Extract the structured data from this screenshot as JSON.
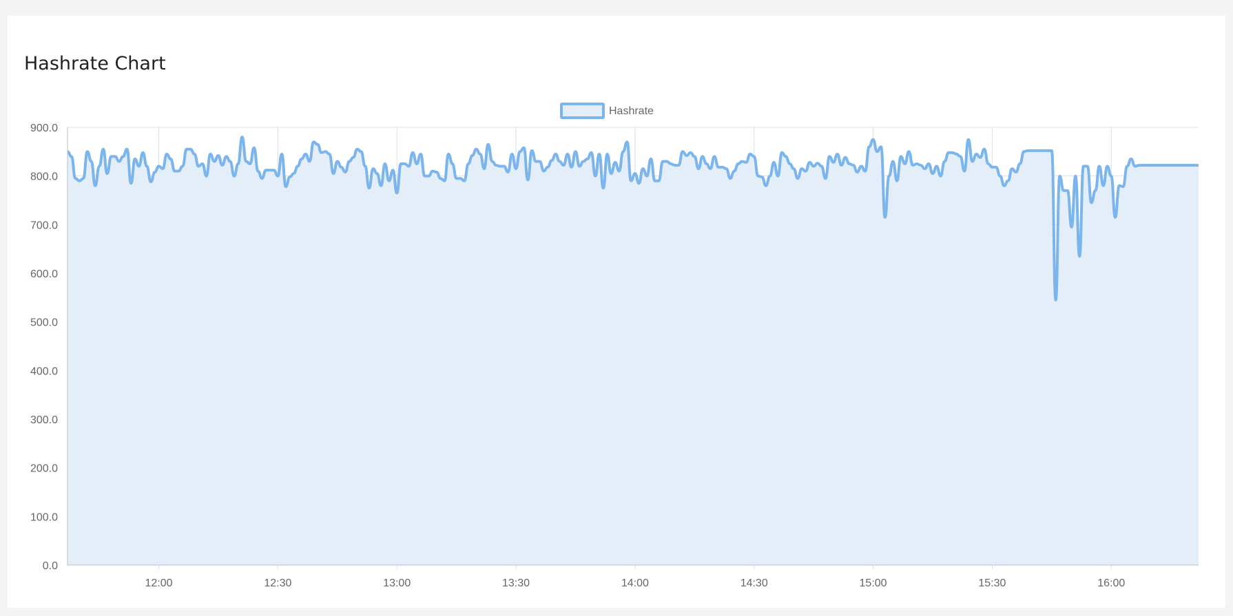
{
  "card": {
    "title": "Hashrate Chart"
  },
  "colors": {
    "line": "#7cb5ec",
    "fill": "#e4eef9",
    "grid": "#d9dfe7",
    "axis": "#b8c2cc",
    "background": "#ffffff",
    "page": "#f4f4f4"
  },
  "chart_data": {
    "type": "area",
    "title": "",
    "xlabel": "",
    "ylabel": "",
    "ylim": [
      0,
      900
    ],
    "xlim": [
      "11:37",
      "16:22"
    ],
    "y_ticks": [
      "0.0",
      "100.0",
      "200.0",
      "300.0",
      "400.0",
      "500.0",
      "600.0",
      "700.0",
      "800.0",
      "900.0"
    ],
    "x_ticks": [
      "12:00",
      "12:30",
      "13:00",
      "13:30",
      "14:00",
      "14:30",
      "15:00",
      "15:30",
      "16:00"
    ],
    "grid": true,
    "legend_position": "top-center",
    "series": [
      {
        "name": "Hashrate",
        "points": [
          [
            "11:37",
            850
          ],
          [
            "11:38",
            840
          ],
          [
            "11:39",
            795
          ],
          [
            "11:40",
            790
          ],
          [
            "11:41",
            795
          ],
          [
            "11:42",
            850
          ],
          [
            "11:43",
            830
          ],
          [
            "11:44",
            780
          ],
          [
            "11:45",
            820
          ],
          [
            "11:46",
            855
          ],
          [
            "11:47",
            805
          ],
          [
            "11:48",
            840
          ],
          [
            "11:49",
            840
          ],
          [
            "11:50",
            830
          ],
          [
            "11:51",
            840
          ],
          [
            "11:52",
            855
          ],
          [
            "11:53",
            785
          ],
          [
            "11:54",
            835
          ],
          [
            "11:55",
            820
          ],
          [
            "11:56",
            848
          ],
          [
            "11:57",
            820
          ],
          [
            "11:58",
            788
          ],
          [
            "11:59",
            808
          ],
          [
            "12:00",
            820
          ],
          [
            "12:01",
            815
          ],
          [
            "12:02",
            845
          ],
          [
            "12:03",
            835
          ],
          [
            "12:04",
            810
          ],
          [
            "12:05",
            810
          ],
          [
            "12:06",
            820
          ],
          [
            "12:07",
            855
          ],
          [
            "12:08",
            855
          ],
          [
            "12:09",
            845
          ],
          [
            "12:10",
            820
          ],
          [
            "12:11",
            825
          ],
          [
            "12:12",
            800
          ],
          [
            "12:13",
            845
          ],
          [
            "12:14",
            830
          ],
          [
            "12:15",
            842
          ],
          [
            "12:16",
            822
          ],
          [
            "12:17",
            840
          ],
          [
            "12:18",
            830
          ],
          [
            "12:19",
            800
          ],
          [
            "12:20",
            825
          ],
          [
            "12:21",
            880
          ],
          [
            "12:22",
            830
          ],
          [
            "12:23",
            825
          ],
          [
            "12:24",
            858
          ],
          [
            "12:25",
            810
          ],
          [
            "12:26",
            795
          ],
          [
            "12:27",
            812
          ],
          [
            "12:28",
            812
          ],
          [
            "12:29",
            812
          ],
          [
            "12:30",
            800
          ],
          [
            "12:31",
            845
          ],
          [
            "12:32",
            778
          ],
          [
            "12:33",
            798
          ],
          [
            "12:34",
            805
          ],
          [
            "12:35",
            820
          ],
          [
            "12:36",
            835
          ],
          [
            "12:37",
            845
          ],
          [
            "12:38",
            830
          ],
          [
            "12:39",
            870
          ],
          [
            "12:40",
            865
          ],
          [
            "12:41",
            848
          ],
          [
            "12:42",
            850
          ],
          [
            "12:43",
            845
          ],
          [
            "12:44",
            805
          ],
          [
            "12:45",
            830
          ],
          [
            "12:46",
            818
          ],
          [
            "12:47",
            808
          ],
          [
            "12:48",
            830
          ],
          [
            "12:49",
            838
          ],
          [
            "12:50",
            855
          ],
          [
            "12:51",
            850
          ],
          [
            "12:52",
            820
          ],
          [
            "12:53",
            775
          ],
          [
            "12:54",
            815
          ],
          [
            "12:55",
            805
          ],
          [
            "12:56",
            780
          ],
          [
            "12:57",
            825
          ],
          [
            "12:58",
            790
          ],
          [
            "12:59",
            812
          ],
          [
            "13:00",
            765
          ],
          [
            "13:01",
            825
          ],
          [
            "13:02",
            825
          ],
          [
            "13:03",
            820
          ],
          [
            "13:04",
            848
          ],
          [
            "13:05",
            825
          ],
          [
            "13:06",
            845
          ],
          [
            "13:07",
            800
          ],
          [
            "13:08",
            800
          ],
          [
            "13:09",
            810
          ],
          [
            "13:10",
            808
          ],
          [
            "13:11",
            795
          ],
          [
            "13:12",
            790
          ],
          [
            "13:13",
            845
          ],
          [
            "13:14",
            825
          ],
          [
            "13:15",
            795
          ],
          [
            "13:16",
            795
          ],
          [
            "13:17",
            790
          ],
          [
            "13:18",
            825
          ],
          [
            "13:19",
            842
          ],
          [
            "13:20",
            855
          ],
          [
            "13:21",
            845
          ],
          [
            "13:22",
            815
          ],
          [
            "13:23",
            865
          ],
          [
            "13:24",
            830
          ],
          [
            "13:25",
            822
          ],
          [
            "13:26",
            820
          ],
          [
            "13:27",
            820
          ],
          [
            "13:28",
            808
          ],
          [
            "13:29",
            845
          ],
          [
            "13:30",
            815
          ],
          [
            "13:31",
            850
          ],
          [
            "13:32",
            858
          ],
          [
            "13:33",
            792
          ],
          [
            "13:34",
            852
          ],
          [
            "13:35",
            830
          ],
          [
            "13:36",
            830
          ],
          [
            "13:37",
            810
          ],
          [
            "13:38",
            818
          ],
          [
            "13:39",
            832
          ],
          [
            "13:40",
            845
          ],
          [
            "13:41",
            830
          ],
          [
            "13:42",
            822
          ],
          [
            "13:43",
            845
          ],
          [
            "13:44",
            818
          ],
          [
            "13:45",
            850
          ],
          [
            "13:46",
            820
          ],
          [
            "13:47",
            830
          ],
          [
            "13:48",
            835
          ],
          [
            "13:49",
            848
          ],
          [
            "13:50",
            800
          ],
          [
            "13:51",
            845
          ],
          [
            "13:52",
            775
          ],
          [
            "13:53",
            845
          ],
          [
            "13:54",
            805
          ],
          [
            "13:55",
            828
          ],
          [
            "13:56",
            810
          ],
          [
            "13:57",
            850
          ],
          [
            "13:58",
            870
          ],
          [
            "13:59",
            790
          ],
          [
            "14:00",
            805
          ],
          [
            "14:01",
            785
          ],
          [
            "14:02",
            815
          ],
          [
            "14:03",
            800
          ],
          [
            "14:04",
            835
          ],
          [
            "14:05",
            790
          ],
          [
            "14:06",
            790
          ],
          [
            "14:07",
            830
          ],
          [
            "14:08",
            830
          ],
          [
            "14:09",
            825
          ],
          [
            "14:10",
            822
          ],
          [
            "14:11",
            822
          ],
          [
            "14:12",
            850
          ],
          [
            "14:13",
            842
          ],
          [
            "14:14",
            848
          ],
          [
            "14:15",
            840
          ],
          [
            "14:16",
            815
          ],
          [
            "14:17",
            840
          ],
          [
            "14:18",
            825
          ],
          [
            "14:19",
            815
          ],
          [
            "14:20",
            840
          ],
          [
            "14:21",
            818
          ],
          [
            "14:22",
            818
          ],
          [
            "14:23",
            815
          ],
          [
            "14:24",
            795
          ],
          [
            "14:25",
            810
          ],
          [
            "14:26",
            825
          ],
          [
            "14:27",
            830
          ],
          [
            "14:28",
            828
          ],
          [
            "14:29",
            845
          ],
          [
            "14:30",
            840
          ],
          [
            "14:31",
            800
          ],
          [
            "14:32",
            798
          ],
          [
            "14:33",
            780
          ],
          [
            "14:34",
            800
          ],
          [
            "14:35",
            828
          ],
          [
            "14:36",
            800
          ],
          [
            "14:37",
            848
          ],
          [
            "14:38",
            840
          ],
          [
            "14:39",
            825
          ],
          [
            "14:40",
            815
          ],
          [
            "14:41",
            795
          ],
          [
            "14:42",
            815
          ],
          [
            "14:43",
            810
          ],
          [
            "14:44",
            828
          ],
          [
            "14:45",
            820
          ],
          [
            "14:46",
            826
          ],
          [
            "14:47",
            820
          ],
          [
            "14:48",
            795
          ],
          [
            "14:49",
            840
          ],
          [
            "14:50",
            828
          ],
          [
            "14:51",
            845
          ],
          [
            "14:52",
            822
          ],
          [
            "14:53",
            838
          ],
          [
            "14:54",
            825
          ],
          [
            "14:55",
            822
          ],
          [
            "14:56",
            808
          ],
          [
            "14:57",
            820
          ],
          [
            "14:58",
            810
          ],
          [
            "14:59",
            860
          ],
          [
            "15:00",
            875
          ],
          [
            "15:01",
            850
          ],
          [
            "15:02",
            860
          ],
          [
            "15:03",
            715
          ],
          [
            "15:04",
            800
          ],
          [
            "15:05",
            830
          ],
          [
            "15:06",
            790
          ],
          [
            "15:07",
            840
          ],
          [
            "15:08",
            825
          ],
          [
            "15:09",
            850
          ],
          [
            "15:10",
            822
          ],
          [
            "15:11",
            825
          ],
          [
            "15:12",
            822
          ],
          [
            "15:13",
            815
          ],
          [
            "15:14",
            825
          ],
          [
            "15:15",
            805
          ],
          [
            "15:16",
            820
          ],
          [
            "15:17",
            800
          ],
          [
            "15:18",
            830
          ],
          [
            "15:19",
            848
          ],
          [
            "15:20",
            848
          ],
          [
            "15:21",
            845
          ],
          [
            "15:22",
            840
          ],
          [
            "15:23",
            810
          ],
          [
            "15:24",
            875
          ],
          [
            "15:25",
            830
          ],
          [
            "15:26",
            845
          ],
          [
            "15:27",
            838
          ],
          [
            "15:28",
            855
          ],
          [
            "15:29",
            825
          ],
          [
            "15:30",
            818
          ],
          [
            "15:31",
            818
          ],
          [
            "15:32",
            800
          ],
          [
            "15:33",
            780
          ],
          [
            "15:34",
            790
          ],
          [
            "15:35",
            815
          ],
          [
            "15:36",
            808
          ],
          [
            "15:37",
            825
          ],
          [
            "15:38",
            850
          ],
          [
            "15:39",
            852
          ],
          [
            "15:40",
            852
          ],
          [
            "15:41",
            852
          ],
          [
            "15:42",
            852
          ],
          [
            "15:43",
            852
          ],
          [
            "15:44",
            852
          ],
          [
            "15:45",
            852
          ],
          [
            "15:46",
            545
          ],
          [
            "15:47",
            800
          ],
          [
            "15:48",
            770
          ],
          [
            "15:49",
            770
          ],
          [
            "15:50",
            695
          ],
          [
            "15:51",
            800
          ],
          [
            "15:52",
            635
          ],
          [
            "15:53",
            820
          ],
          [
            "15:54",
            820
          ],
          [
            "15:55",
            745
          ],
          [
            "15:56",
            770
          ],
          [
            "15:57",
            820
          ],
          [
            "15:58",
            780
          ],
          [
            "15:59",
            820
          ],
          [
            "16:00",
            800
          ],
          [
            "16:01",
            715
          ],
          [
            "16:02",
            780
          ],
          [
            "16:03",
            778
          ],
          [
            "16:04",
            820
          ],
          [
            "16:05",
            835
          ],
          [
            "16:06",
            820
          ],
          [
            "16:07",
            822
          ],
          [
            "16:22",
            822
          ]
        ]
      }
    ]
  }
}
